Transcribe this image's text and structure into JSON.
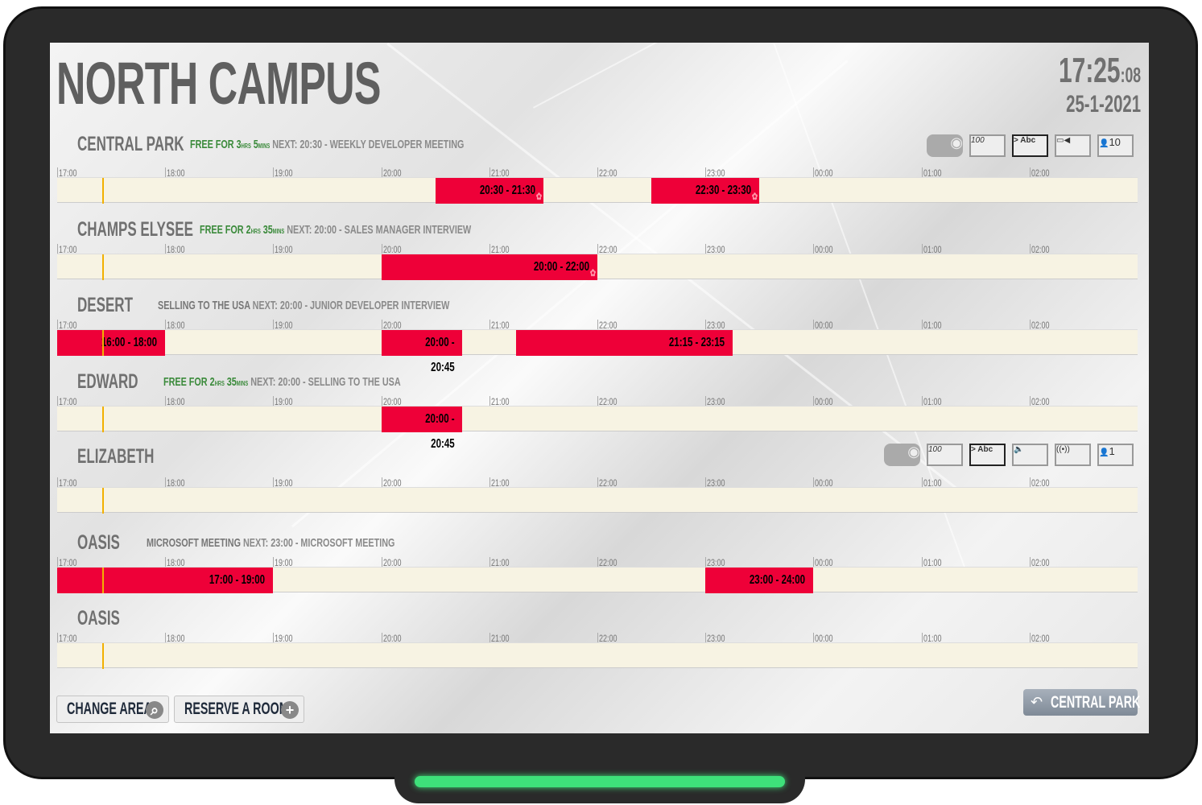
{
  "header": {
    "title": "NORTH CAMPUS",
    "time_hm": "17:25",
    "time_s": ":08",
    "date": "25-1-2021"
  },
  "timeline": {
    "start": "17:00",
    "end": "03:00",
    "now": "17:25",
    "hours": [
      "17:00",
      "18:00",
      "19:00",
      "20:00",
      "21:00",
      "22:00",
      "23:00",
      "00:00",
      "01:00",
      "02:00"
    ]
  },
  "colors": {
    "booked": "#ee0038",
    "free_bar": "#f7f3e3",
    "now_line": "#f2b000",
    "free_text": "#3a8a3a"
  },
  "rooms": [
    {
      "name": "CENTRAL PARK",
      "status": "",
      "free_prefix": "FREE FOR ",
      "free_h": "3",
      "free_m": "5",
      "hrs": "HRS",
      "mins": "MINS",
      "next": "NEXT: 20:30 - WEEKLY DEVELOPER MEETING",
      "facilities": [
        "projector-icon",
        "whiteboard-icon",
        "display-icon",
        "video-camera-icon",
        "capacity-icon"
      ],
      "capacity": "10",
      "bookings": [
        {
          "start": 20.5,
          "end": 21.5,
          "label": "20:30 - 21:30",
          "flower": true
        },
        {
          "start": 22.5,
          "end": 23.5,
          "label": "22:30 - 23:30",
          "flower": true
        }
      ]
    },
    {
      "name": "CHAMPS ELYSEE",
      "status": "",
      "free_prefix": "FREE FOR ",
      "free_h": "2",
      "free_m": "35",
      "hrs": "HRS",
      "mins": "MINS",
      "next": "NEXT: 20:00 - SALES MANAGER INTERVIEW",
      "facilities": [],
      "bookings": [
        {
          "start": 20,
          "end": 22,
          "label": "20:00 - 22:00",
          "flower": true
        }
      ]
    },
    {
      "name": "DESERT",
      "status": "SELLING TO THE USA",
      "next": "NEXT: 20:00 - JUNIOR DEVELOPER INTERVIEW",
      "facilities": [],
      "bookings": [
        {
          "start": 16,
          "end": 18,
          "label": "16:00 - 18:00"
        },
        {
          "start": 20,
          "end": 20.75,
          "label": "20:00 - 20:45"
        },
        {
          "start": 21.25,
          "end": 23.25,
          "label": "21:15 - 23:15"
        }
      ]
    },
    {
      "name": "EDWARD",
      "status": "",
      "free_prefix": "FREE FOR ",
      "free_h": "2",
      "free_m": "35",
      "hrs": "HRS",
      "mins": "MINS",
      "next": "NEXT: 20:00 - SELLING TO THE USA",
      "facilities": [],
      "bookings": [
        {
          "start": 20,
          "end": 20.75,
          "label": "20:00 - 20:45"
        }
      ]
    },
    {
      "name": "ELIZABETH",
      "status": "",
      "next": "",
      "facilities": [
        "projector-icon",
        "whiteboard-icon",
        "display-icon",
        "speaker-icon",
        "wifi-icon",
        "capacity-icon"
      ],
      "capacity": "1",
      "bookings": []
    },
    {
      "name": "OASIS",
      "status": "MICROSOFT MEETING",
      "next": "NEXT: 23:00 - MICROSOFT MEETING",
      "facilities": [],
      "bookings": [
        {
          "start": 17,
          "end": 19,
          "label": "17:00 - 19:00"
        },
        {
          "start": 23,
          "end": 24,
          "label": "23:00 - 24:00"
        }
      ]
    },
    {
      "name": "OASIS",
      "status": "",
      "next": "",
      "facilities": [],
      "bookings": []
    }
  ],
  "footer": {
    "change_area": "CHANGE AREA",
    "reserve": "RESERVE A ROOM",
    "current_room": "CENTRAL PARK"
  },
  "icon_text": {
    "whiteboard": "100",
    "display": "> Abc"
  }
}
